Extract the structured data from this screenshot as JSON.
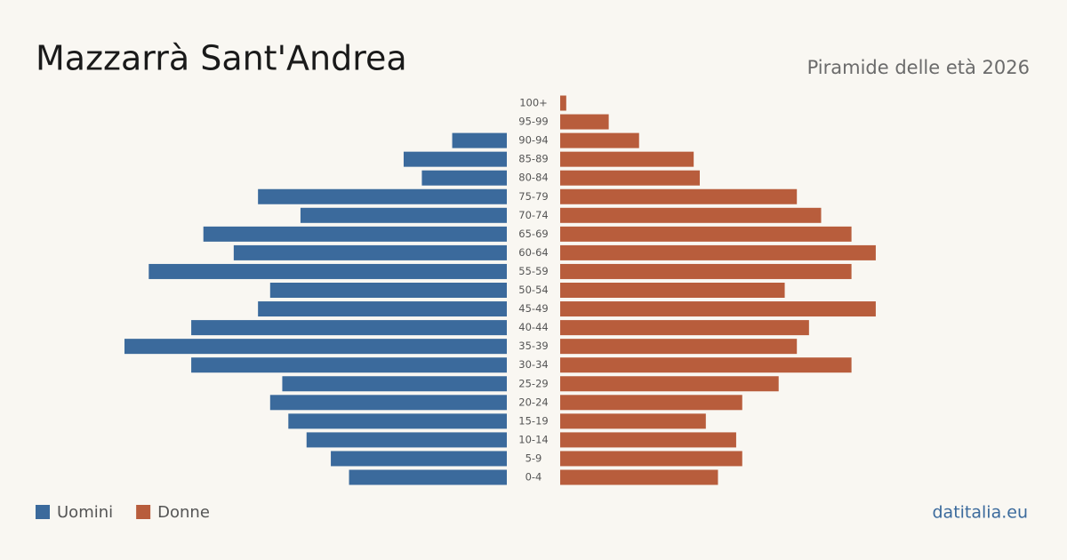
{
  "chart_data": {
    "type": "pyramid",
    "title": "Mazzarrà Sant'Andrea",
    "subtitle": "Piramide delle età 2026",
    "source": "datitalia.eu",
    "categories": [
      "100+",
      "95-99",
      "90-94",
      "85-89",
      "80-84",
      "75-79",
      "70-74",
      "65-69",
      "60-64",
      "55-59",
      "50-54",
      "45-49",
      "40-44",
      "35-39",
      "30-34",
      "25-29",
      "20-24",
      "15-19",
      "10-14",
      "5-9",
      "0-4"
    ],
    "series": [
      {
        "name": "Uomini",
        "color": "#3b6a9c",
        "values": [
          0,
          0,
          9,
          17,
          14,
          41,
          34,
          50,
          45,
          59,
          39,
          41,
          52,
          63,
          52,
          37,
          39,
          36,
          33,
          29,
          26
        ]
      },
      {
        "name": "Donne",
        "color": "#b85d3c",
        "values": [
          1,
          8,
          13,
          22,
          23,
          39,
          43,
          48,
          52,
          48,
          37,
          52,
          41,
          39,
          48,
          36,
          30,
          24,
          29,
          30,
          26
        ]
      }
    ],
    "legend": "bottom-left"
  }
}
